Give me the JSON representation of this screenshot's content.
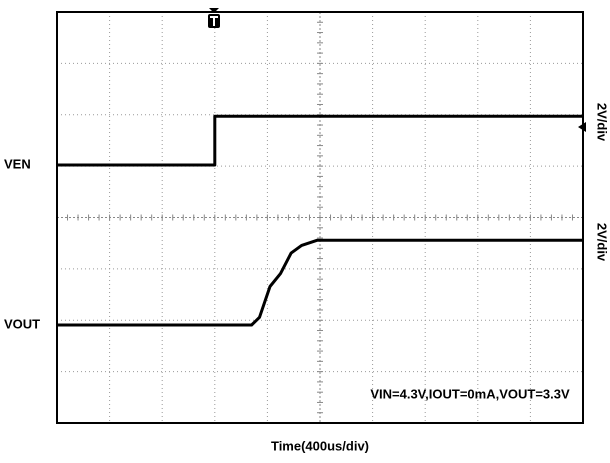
{
  "chart_data": {
    "type": "line",
    "x_label": "Time(400us/div)",
    "xlim": [
      0,
      4000
    ],
    "annotation": "VIN=4.3V,IOUT=0mA,VOUT=3.3V",
    "series": [
      {
        "name": "VEN",
        "color": "#000000",
        "scale": "2V/div",
        "x": [
          0,
          1200,
          1200,
          4000
        ],
        "values": [
          0,
          0,
          1.9,
          1.9
        ]
      },
      {
        "name": "VOUT",
        "color": "#000000",
        "scale": "2V/div",
        "x": [
          0,
          1480,
          1540,
          1620,
          1700,
          1780,
          1860,
          1980,
          4000
        ],
        "values": [
          0,
          0,
          0.3,
          1.5,
          2.0,
          2.8,
          3.1,
          3.3,
          3.3
        ]
      }
    ]
  }
}
